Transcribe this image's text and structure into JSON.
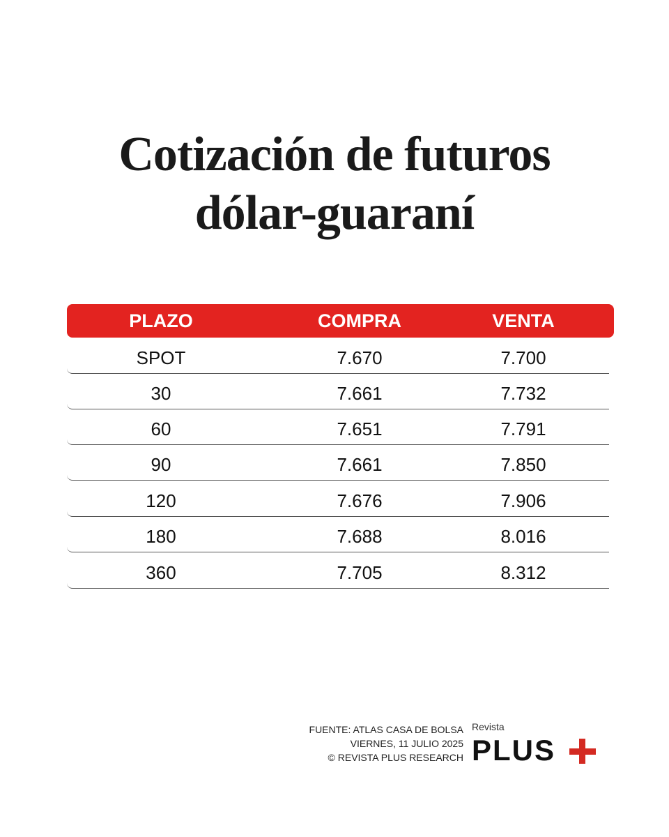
{
  "title": {
    "line1": "Cotización de futuros",
    "line2": "dólar-guaraní"
  },
  "table": {
    "headers": [
      "PLAZO",
      "COMPRA",
      "VENTA"
    ],
    "rows": [
      [
        "SPOT",
        "7.670",
        "7.700"
      ],
      [
        "30",
        "7.661",
        "7.732"
      ],
      [
        "60",
        "7.651",
        "7.791"
      ],
      [
        "90",
        "7.661",
        "7.850"
      ],
      [
        "120",
        "7.676",
        "7.906"
      ],
      [
        "180",
        "7.688",
        "8.016"
      ],
      [
        "360",
        "7.705",
        "8.312"
      ]
    ],
    "header_color": "#e32320"
  },
  "footer": {
    "source": "FUENTE: ATLAS CASA DE BOLSA",
    "date": "VIERNES, 11 JULIO 2025",
    "copyright": "© REVISTA PLUS RESEARCH"
  },
  "logo": {
    "small": "Revista",
    "big": "PLUS",
    "accent_color": "#d42a22"
  }
}
